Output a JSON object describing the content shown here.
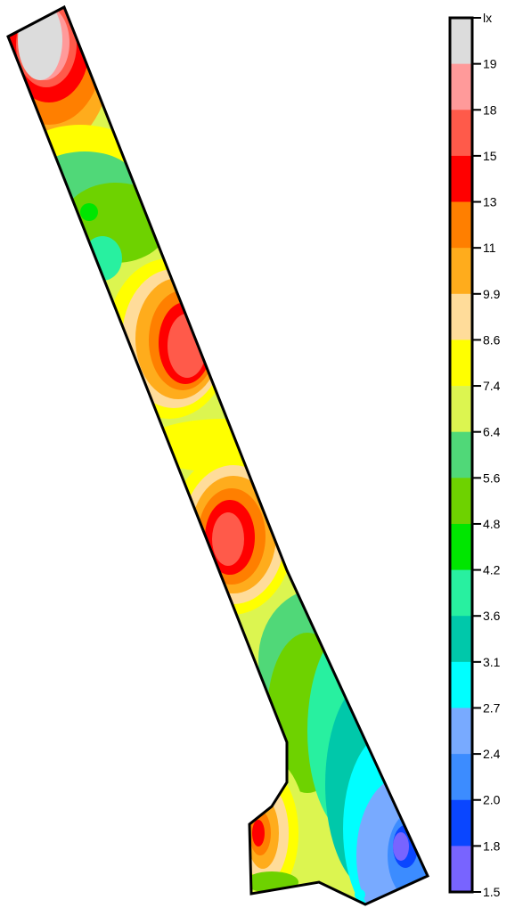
{
  "chart_data": {
    "type": "heatmap",
    "title": "",
    "xlabel": "",
    "ylabel": "",
    "colorbar": {
      "unit": "lx",
      "tick_labels": [
        "19",
        "18",
        "15",
        "13",
        "11",
        "9.9",
        "8.6",
        "7.4",
        "6.4",
        "5.6",
        "4.8",
        "4.2",
        "3.6",
        "3.1",
        "2.7",
        "2.4",
        "2.0",
        "1.8",
        "1.5"
      ],
      "min": 1.5,
      "max": 19,
      "band_colors_top_to_bottom": [
        "#dcdcdc",
        "#ff9a9a",
        "#ff5a4a",
        "#ff0000",
        "#ff7f00",
        "#ffac1c",
        "#ffdc9a",
        "#ffff00",
        "#dcf550",
        "#50d878",
        "#6ed200",
        "#00e600",
        "#28f0a0",
        "#00c8aa",
        "#00ffff",
        "#78aaff",
        "#3c8cff",
        "#0a46ff",
        "#7864ff"
      ]
    },
    "grid": false,
    "legend": "colorbar-right"
  }
}
